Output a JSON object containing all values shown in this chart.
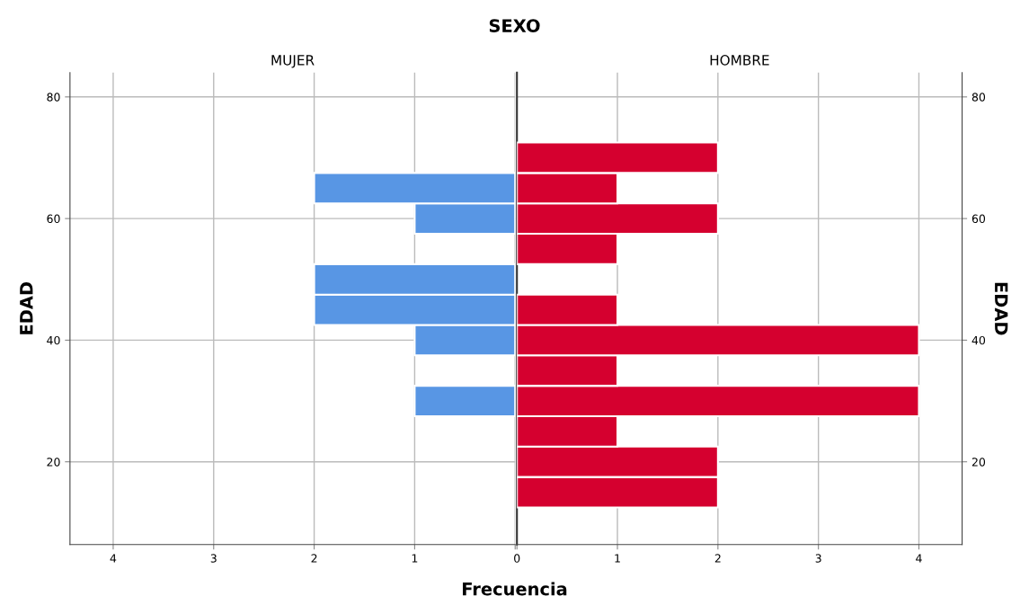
{
  "chart_data": [
    {
      "type": "histogram",
      "orientation": "horizontal",
      "title": "MUJER",
      "ylabel": "EDAD",
      "xlabel": "Frecuencia",
      "annotations": [
        "SEXO"
      ],
      "bins": [
        12.5,
        17.5,
        22.5,
        27.5,
        32.5,
        37.5,
        42.5,
        47.5,
        52.5,
        57.5,
        62.5,
        67.5,
        72.5
      ],
      "values": [
        null,
        null,
        null,
        1,
        null,
        1,
        2,
        2,
        null,
        1,
        2,
        null
      ],
      "color": "#5896e4",
      "xlim": [
        4.43,
        0
      ],
      "xticks": [
        4,
        3,
        2,
        1,
        {
          "value": 0,
          "label": null
        }
      ],
      "ylim": [
        6.4,
        84
      ],
      "yticks": [
        20,
        40,
        60,
        80
      ],
      "grid": true
    },
    {
      "type": "histogram",
      "orientation": "horizontal",
      "title": "HOMBRE",
      "ylabel": "EDAD",
      "bins": [
        12.5,
        17.5,
        22.5,
        27.5,
        32.5,
        37.5,
        42.5,
        47.5,
        52.5,
        57.5,
        62.5,
        67.5,
        72.5
      ],
      "values": [
        2,
        2,
        1,
        4,
        1,
        4,
        1,
        null,
        1,
        2,
        1,
        2
      ],
      "color": "#d5002f",
      "xlim": [
        0,
        4.43
      ],
      "xticks": [
        0,
        1,
        2,
        3,
        4
      ],
      "ylim": [
        6.4,
        84
      ],
      "yticks": [
        20,
        40,
        60,
        80
      ],
      "grid": true
    }
  ]
}
